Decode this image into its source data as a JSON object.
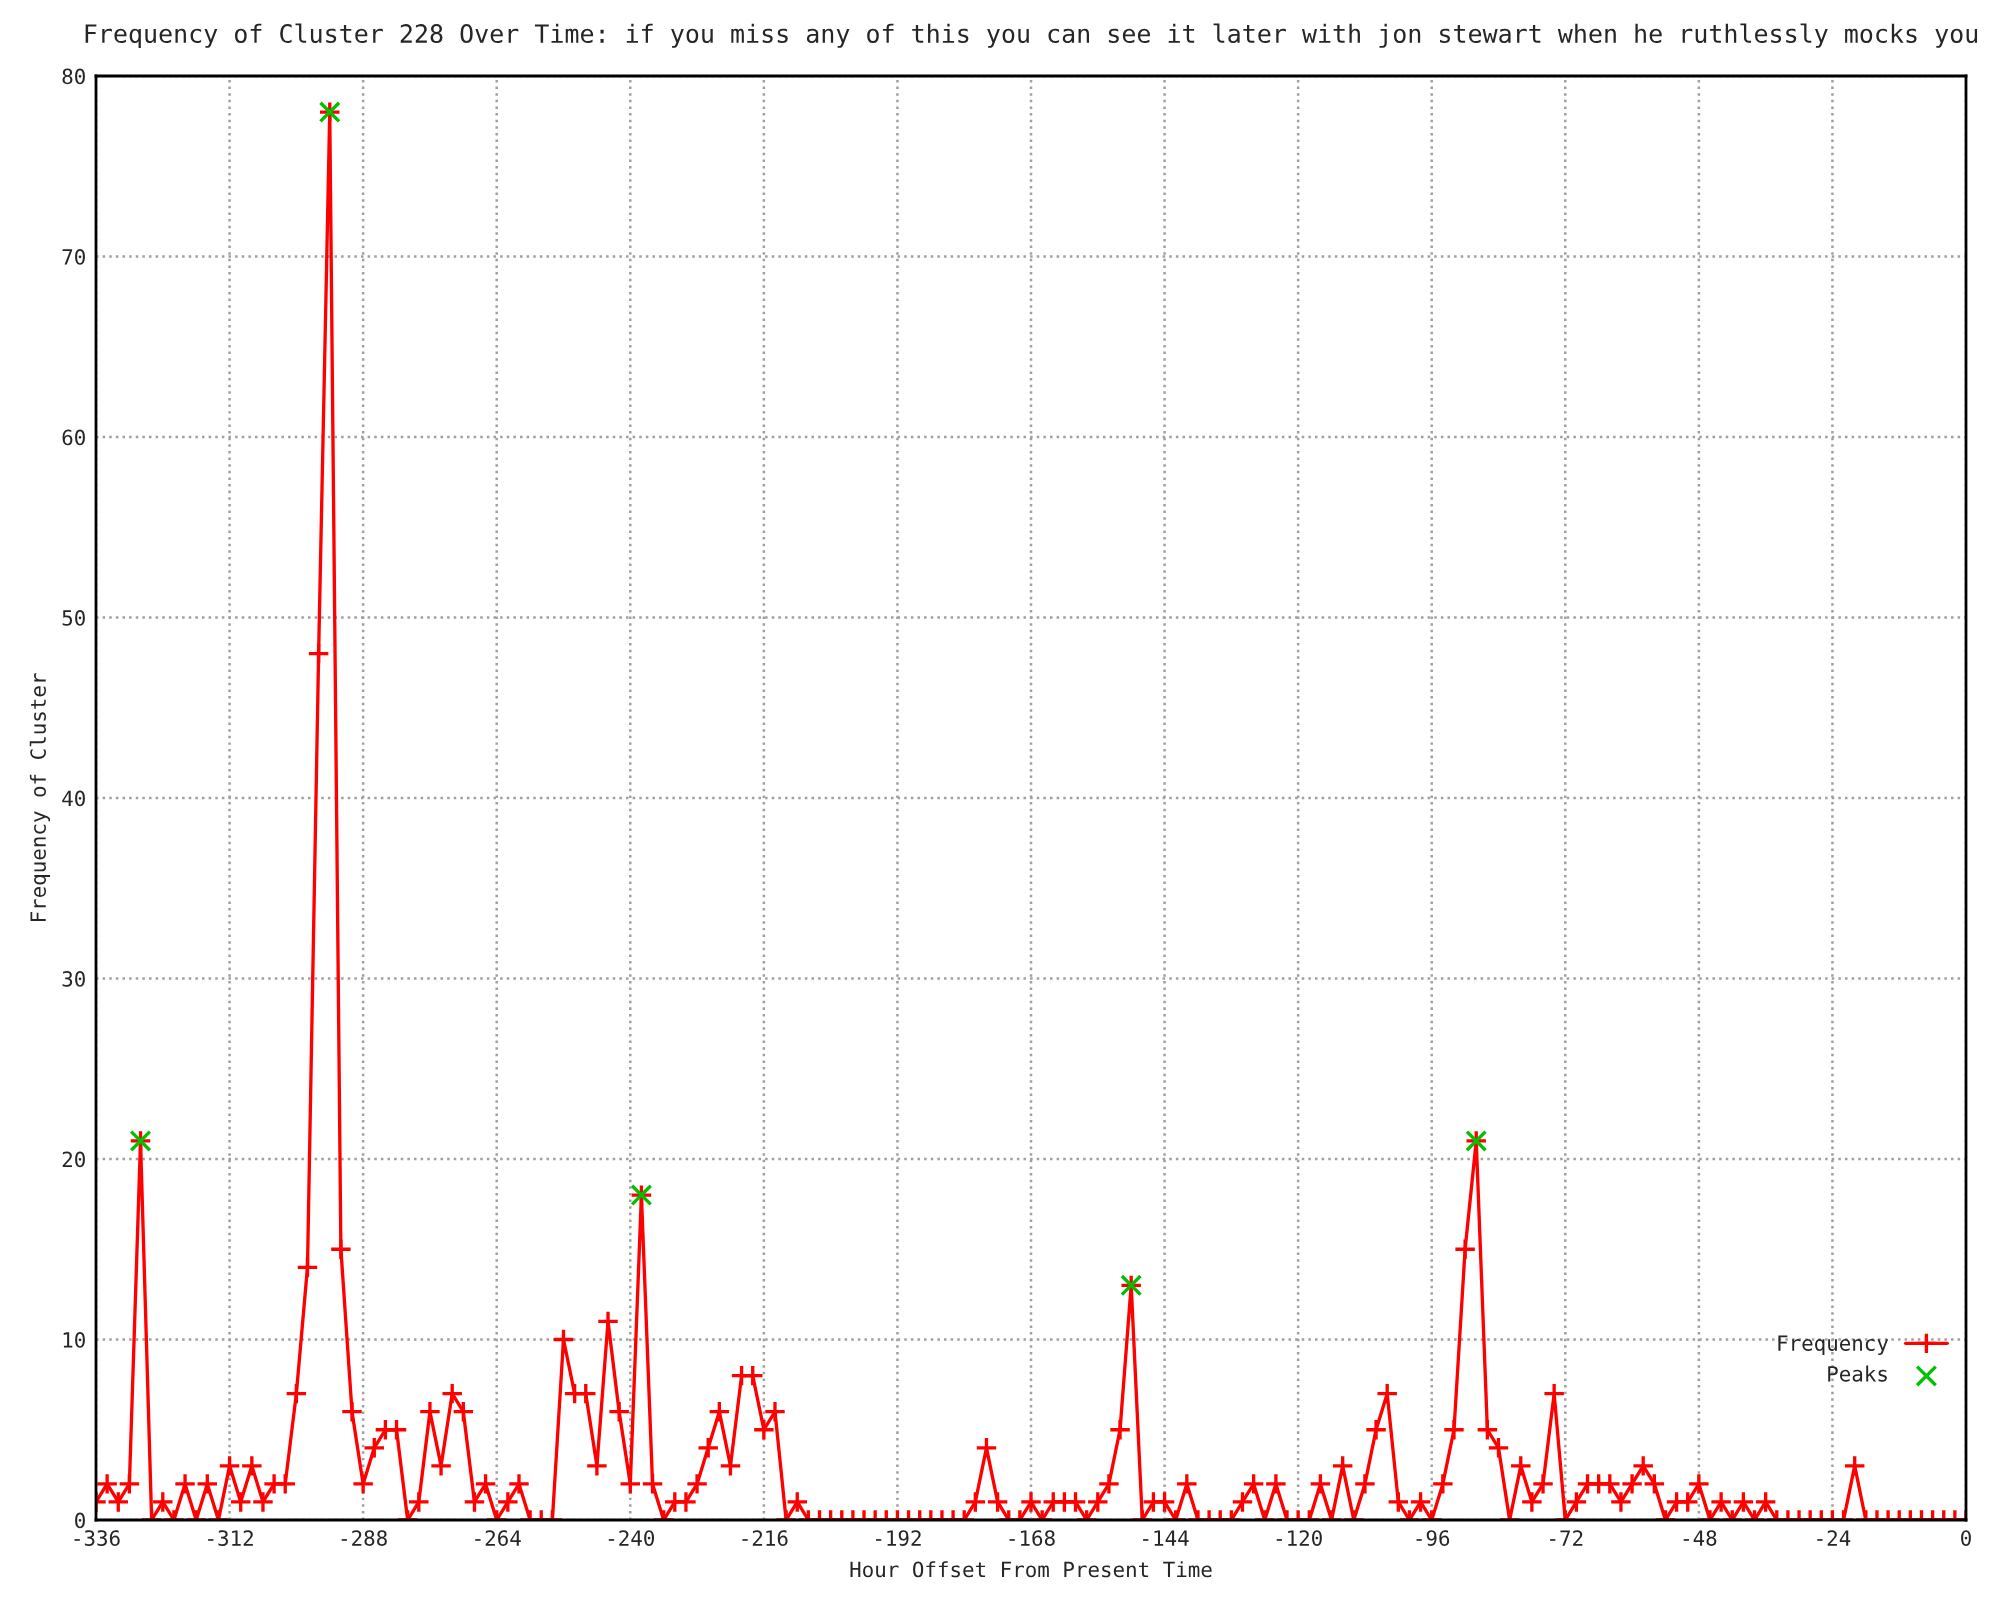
{
  "chart_data": {
    "type": "line",
    "title": "Frequency of Cluster 228 Over Time: if you miss any of this you can see it later with jon stewart when he ruthlessly mocks you",
    "xlabel": "Hour Offset From Present Time",
    "ylabel": "Frequency of Cluster",
    "x": [
      -336,
      -334,
      -332,
      -330,
      -328,
      -326,
      -324,
      -322,
      -320,
      -318,
      -316,
      -314,
      -312,
      -310,
      -308,
      -306,
      -304,
      -302,
      -300,
      -298,
      -296,
      -294,
      -292,
      -290,
      -288,
      -286,
      -284,
      -282,
      -280,
      -278,
      -276,
      -274,
      -272,
      -270,
      -268,
      -266,
      -264,
      -262,
      -260,
      -258,
      -256,
      -254,
      -252,
      -250,
      -248,
      -246,
      -244,
      -242,
      -240,
      -238,
      -236,
      -234,
      -232,
      -230,
      -228,
      -226,
      -224,
      -222,
      -220,
      -218,
      -216,
      -214,
      -212,
      -210,
      -208,
      -206,
      -204,
      -202,
      -200,
      -198,
      -196,
      -194,
      -192,
      -190,
      -188,
      -186,
      -184,
      -182,
      -180,
      -178,
      -176,
      -174,
      -172,
      -170,
      -168,
      -166,
      -164,
      -162,
      -160,
      -158,
      -156,
      -154,
      -152,
      -150,
      -148,
      -146,
      -144,
      -142,
      -140,
      -138,
      -136,
      -134,
      -132,
      -130,
      -128,
      -126,
      -124,
      -122,
      -120,
      -118,
      -116,
      -114,
      -112,
      -110,
      -108,
      -106,
      -104,
      -102,
      -100,
      -98,
      -96,
      -94,
      -92,
      -90,
      -88,
      -86,
      -84,
      -82,
      -80,
      -78,
      -76,
      -74,
      -72,
      -70,
      -68,
      -66,
      -64,
      -62,
      -60,
      -58,
      -56,
      -54,
      -52,
      -50,
      -48,
      -46,
      -44,
      -42,
      -40,
      -38,
      -36,
      -34,
      -32,
      -30,
      -28,
      -26,
      -24,
      -22,
      -20,
      -18,
      -16,
      -14,
      -12,
      -10,
      -8,
      -6,
      -4,
      -2,
      0
    ],
    "series": [
      {
        "name": "Frequency",
        "color": "#ff0000",
        "marker": "plus",
        "line_style": "solid",
        "values": [
          1,
          2,
          1,
          2,
          21,
          0,
          1,
          0,
          2,
          0,
          2,
          0,
          3,
          1,
          3,
          1,
          2,
          2,
          7,
          14,
          48,
          78,
          15,
          6,
          2,
          4,
          5,
          5,
          0,
          1,
          6,
          3,
          7,
          6,
          1,
          2,
          0,
          1,
          2,
          0,
          0,
          0,
          10,
          7,
          7,
          3,
          11,
          6,
          2,
          18,
          2,
          0,
          1,
          1,
          2,
          4,
          6,
          3,
          8,
          8,
          5,
          6,
          0,
          1,
          0,
          0,
          0,
          0,
          0,
          0,
          0,
          0,
          0,
          0,
          0,
          0,
          0,
          0,
          0,
          1,
          4,
          1,
          0,
          0,
          1,
          0,
          1,
          1,
          1,
          0,
          1,
          2,
          5,
          13,
          0,
          1,
          1,
          0,
          2,
          0,
          0,
          0,
          0,
          1,
          2,
          0,
          2,
          0,
          0,
          0,
          2,
          0,
          3,
          0,
          2,
          5,
          7,
          1,
          0,
          1,
          0,
          2,
          5,
          15,
          21,
          5,
          4,
          0,
          3,
          1,
          2,
          7,
          0,
          1,
          2,
          2,
          2,
          1,
          2,
          3,
          2,
          0,
          1,
          1,
          2,
          0,
          1,
          0,
          1,
          0,
          1,
          0,
          0,
          0,
          0,
          0,
          0,
          0,
          3,
          0,
          0,
          0,
          0,
          0,
          0,
          0,
          0,
          0,
          0
        ]
      },
      {
        "name": "Peaks",
        "type": "scatter",
        "color": "#00c000",
        "marker": "cross",
        "x": [
          -328,
          -294,
          -238,
          -150,
          -88
        ],
        "values": [
          21,
          78,
          18,
          13,
          21
        ]
      }
    ],
    "xlim": [
      -336,
      0
    ],
    "xticks": [
      -336,
      -312,
      -288,
      -264,
      -240,
      -216,
      -192,
      -168,
      -144,
      -120,
      -96,
      -72,
      -48,
      -24,
      0
    ],
    "ylim": [
      0,
      80
    ],
    "yticks": [
      0,
      10,
      20,
      30,
      40,
      50,
      60,
      70,
      80
    ],
    "grid": true,
    "legend": "bottom right"
  }
}
